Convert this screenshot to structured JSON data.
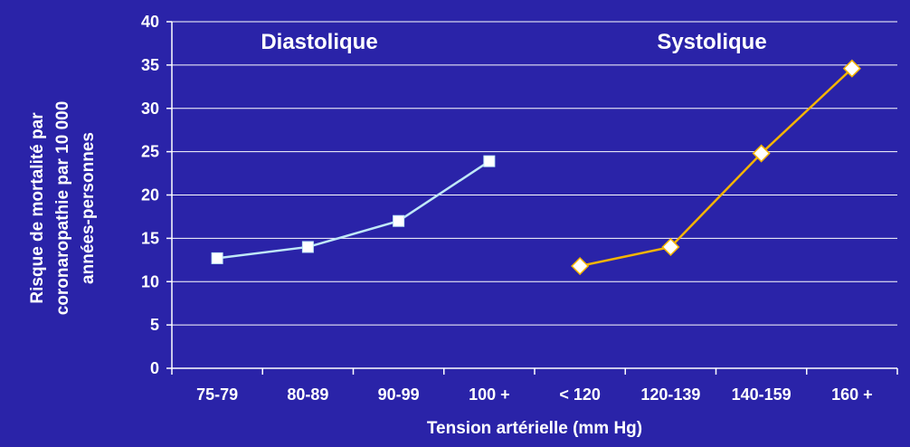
{
  "colors": {
    "background": "#2a23a8",
    "grid": "#ffffff",
    "axis": "#ffffff",
    "diastolic": "#bfe8f7",
    "systolic": "#f4b400"
  },
  "chart_data": {
    "type": "line",
    "title": "",
    "xlabel": "Tension artérielle (mm Hg)",
    "ylabel_lines": [
      "Risque de mortalité par",
      "coronaropathie par 10 000",
      "années-personnes"
    ],
    "ylim": [
      0,
      40
    ],
    "yticks": [
      0,
      5,
      10,
      15,
      20,
      25,
      30,
      35,
      40
    ],
    "grid": true,
    "categories": [
      "75-79",
      "80-89",
      "90-99",
      "100 +",
      "< 120",
      "120-139",
      "140-159",
      "160 +"
    ],
    "group_labels": [
      "Diastolique",
      "Systolique"
    ],
    "series": [
      {
        "name": "Diastolique",
        "marker": "square",
        "color": "#bfe8f7",
        "points": [
          {
            "category": "75-79",
            "value": 12.7
          },
          {
            "category": "80-89",
            "value": 14.0
          },
          {
            "category": "90-99",
            "value": 17.0
          },
          {
            "category": "100 +",
            "value": 23.9
          }
        ]
      },
      {
        "name": "Systolique",
        "marker": "diamond",
        "color": "#f4b400",
        "points": [
          {
            "category": "< 120",
            "value": 11.8
          },
          {
            "category": "120-139",
            "value": 14.0
          },
          {
            "category": "140-159",
            "value": 24.8
          },
          {
            "category": "160 +",
            "value": 34.6
          }
        ]
      }
    ]
  }
}
